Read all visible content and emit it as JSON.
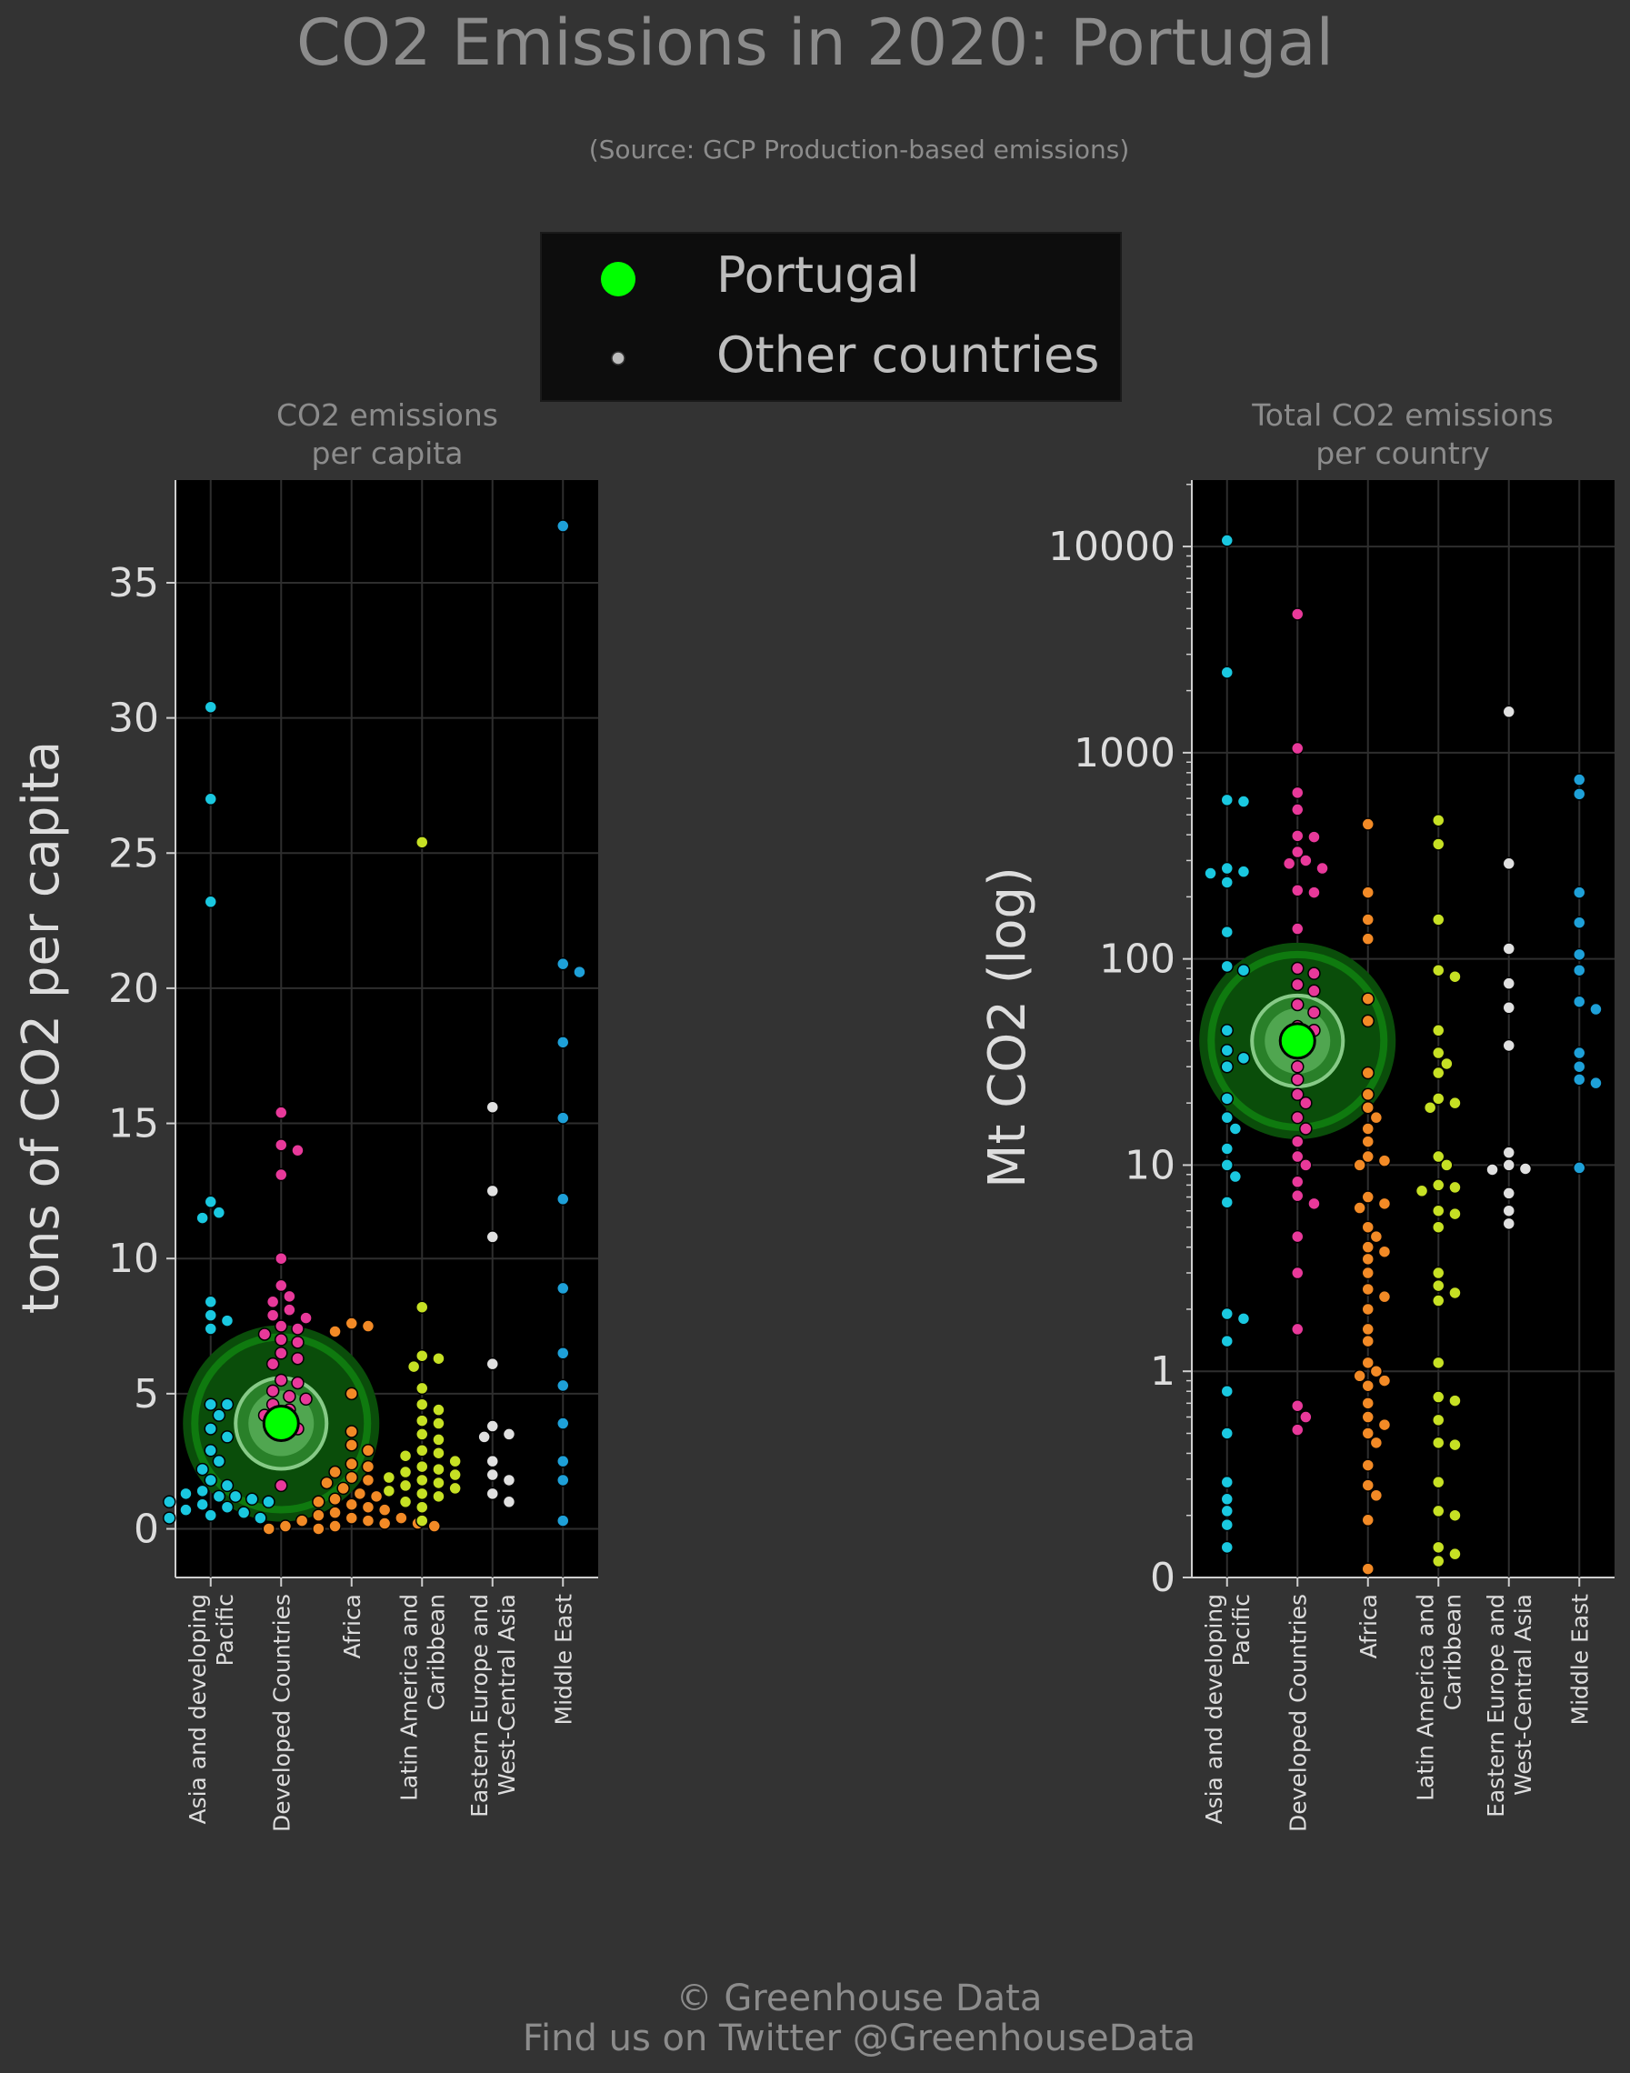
{
  "title": "CO2 Emissions in 2020: Portugal",
  "subtitle": "(Source: GCP Production-based emissions)",
  "legend": {
    "highlight": "Portugal",
    "others": "Other countries"
  },
  "colors": {
    "Asia and developing Pacific": "#1ac8e0",
    "Developed Countries": "#e8399a",
    "Africa": "#f28a26",
    "Latin America and Caribbean": "#c6e024",
    "Eastern Europe and West-Central Asia": "#e0e0e0",
    "Middle East": "#1ea0d8",
    "highlight": "#00ff00",
    "plot_bg": "#000000",
    "page_bg": "#333333"
  },
  "footer": {
    "line1": "© Greenhouse Data",
    "line2": "Find us on Twitter @GreenhouseData"
  },
  "chart_data": [
    {
      "type": "scatter",
      "title": "CO2 emissions\nper capita",
      "ylabel": "tons of CO2 per capita",
      "scale": "linear",
      "ylim": [
        -1.8,
        38.8
      ],
      "yticks": [
        0,
        5,
        10,
        15,
        20,
        25,
        30,
        35
      ],
      "ytick_labels": [
        "0",
        "5",
        "10",
        "15",
        "20",
        "25",
        "30",
        "35"
      ],
      "categories": [
        "Asia and developing\nPacific",
        "Developed Countries",
        "Africa",
        "Latin America and\nCaribbean",
        "Eastern Europe and\nWest-Central Asia",
        "Middle East"
      ],
      "highlight": {
        "name": "Portugal",
        "category": "Developed Countries",
        "value": 3.9
      },
      "grid": true,
      "series": [
        {
          "category": "Asia and developing Pacific",
          "values": [
            30.4,
            27.0,
            23.2,
            12.1,
            11.7,
            11.5,
            8.4,
            7.9,
            7.7,
            7.4,
            4.6,
            4.6,
            4.2,
            3.7,
            3.4,
            2.9,
            2.5,
            2.2,
            1.8,
            1.6,
            1.4,
            1.3,
            1.2,
            1.2,
            1.1,
            1.0,
            1.0,
            0.9,
            0.8,
            0.7,
            0.6,
            0.5,
            0.4,
            0.4
          ]
        },
        {
          "category": "Developed Countries",
          "values": [
            15.4,
            14.2,
            14.0,
            13.1,
            10.0,
            9.0,
            8.6,
            8.4,
            8.1,
            7.9,
            7.8,
            7.5,
            7.4,
            7.2,
            7.0,
            6.9,
            6.5,
            6.3,
            6.1,
            5.5,
            5.4,
            5.1,
            4.9,
            4.8,
            4.6,
            4.4,
            4.2,
            3.9,
            3.7,
            1.6
          ]
        },
        {
          "category": "Africa",
          "values": [
            7.6,
            7.5,
            7.3,
            5.0,
            3.6,
            3.1,
            2.9,
            2.4,
            2.3,
            2.1,
            1.9,
            1.8,
            1.7,
            1.5,
            1.3,
            1.2,
            1.1,
            1.0,
            0.9,
            0.8,
            0.7,
            0.6,
            0.5,
            0.4,
            0.4,
            0.3,
            0.3,
            0.2,
            0.2,
            0.1,
            0.1,
            0.1,
            0.0,
            0.0,
            0.0
          ]
        },
        {
          "category": "Latin America and Caribbean",
          "values": [
            25.4,
            8.2,
            6.4,
            6.3,
            6.0,
            5.2,
            4.6,
            4.4,
            4.0,
            3.9,
            3.5,
            3.3,
            2.9,
            2.8,
            2.7,
            2.5,
            2.3,
            2.2,
            2.1,
            2.0,
            1.9,
            1.8,
            1.7,
            1.6,
            1.5,
            1.4,
            1.3,
            1.2,
            1.0,
            0.8,
            0.3
          ]
        },
        {
          "category": "Eastern Europe and West-Central Asia",
          "values": [
            15.6,
            12.5,
            10.8,
            6.1,
            3.8,
            3.5,
            3.4,
            2.5,
            2.0,
            1.8,
            1.3,
            1.0
          ]
        },
        {
          "category": "Middle East",
          "values": [
            37.1,
            20.9,
            20.6,
            18.0,
            15.2,
            12.2,
            8.9,
            6.5,
            5.3,
            3.9,
            2.5,
            1.8,
            0.3
          ]
        }
      ]
    },
    {
      "type": "scatter",
      "title": "Total CO2 emissions\nper country",
      "ylabel": "Mt CO2 (log)",
      "scale": "log",
      "ylim": [
        0.1,
        21000
      ],
      "yticks": [
        0.1,
        1,
        10,
        100,
        1000,
        10000
      ],
      "ytick_labels": [
        "0",
        "1",
        "10",
        "100",
        "1000",
        "10000"
      ],
      "categories": [
        "Asia and developing\nPacific",
        "Developed Countries",
        "Africa",
        "Latin America and\nCaribbean",
        "Eastern Europe and\nWest-Central Asia",
        "Middle East"
      ],
      "highlight": {
        "name": "Portugal",
        "category": "Developed Countries",
        "value": 40
      },
      "grid": true,
      "series": [
        {
          "category": "Asia and developing Pacific",
          "values": [
            10700,
            2450,
            590,
            580,
            275,
            265,
            260,
            235,
            135,
            92,
            88,
            45,
            36,
            33,
            30,
            21,
            17,
            15,
            12,
            10,
            8.8,
            6.6,
            1.9,
            1.8,
            1.4,
            0.8,
            0.5,
            0.29,
            0.24,
            0.21,
            0.18,
            0.14
          ]
        },
        {
          "category": "Developed Countries",
          "values": [
            4700,
            1050,
            640,
            530,
            395,
            390,
            330,
            300,
            290,
            275,
            215,
            210,
            140,
            90,
            85,
            75,
            70,
            60,
            55,
            47,
            45,
            35,
            30,
            26,
            22,
            20,
            17,
            15,
            13,
            11,
            10,
            8.3,
            7.1,
            6.5,
            4.5,
            3.0,
            1.6,
            0.68,
            0.6,
            0.52
          ]
        },
        {
          "category": "Africa",
          "values": [
            450,
            210,
            155,
            125,
            64,
            50,
            28,
            22,
            19,
            17,
            15,
            13,
            11,
            10.5,
            10,
            7,
            6.5,
            6.2,
            5,
            4.5,
            4,
            3.8,
            3.5,
            3,
            2.5,
            2.3,
            2,
            1.6,
            1.4,
            1.1,
            1.0,
            0.95,
            0.9,
            0.85,
            0.7,
            0.6,
            0.55,
            0.5,
            0.45,
            0.35,
            0.28,
            0.25,
            0.19,
            0.11
          ]
        },
        {
          "category": "Latin America and Caribbean",
          "values": [
            470,
            360,
            155,
            88,
            82,
            45,
            35,
            31,
            28,
            21,
            20,
            19,
            11,
            10,
            8,
            7.8,
            7.5,
            6,
            5.8,
            5,
            3,
            2.6,
            2.4,
            2.2,
            1.1,
            0.75,
            0.72,
            0.58,
            0.45,
            0.44,
            0.29,
            0.21,
            0.2,
            0.14,
            0.13,
            0.12
          ]
        },
        {
          "category": "Eastern Europe and West-Central Asia",
          "values": [
            1580,
            290,
            112,
            76,
            58,
            38,
            11.5,
            10,
            9.6,
            9.5,
            7.3,
            6,
            5.2
          ]
        },
        {
          "category": "Middle East",
          "values": [
            740,
            630,
            210,
            150,
            105,
            88,
            62,
            57,
            35,
            30,
            26,
            25,
            9.7
          ]
        }
      ]
    }
  ]
}
